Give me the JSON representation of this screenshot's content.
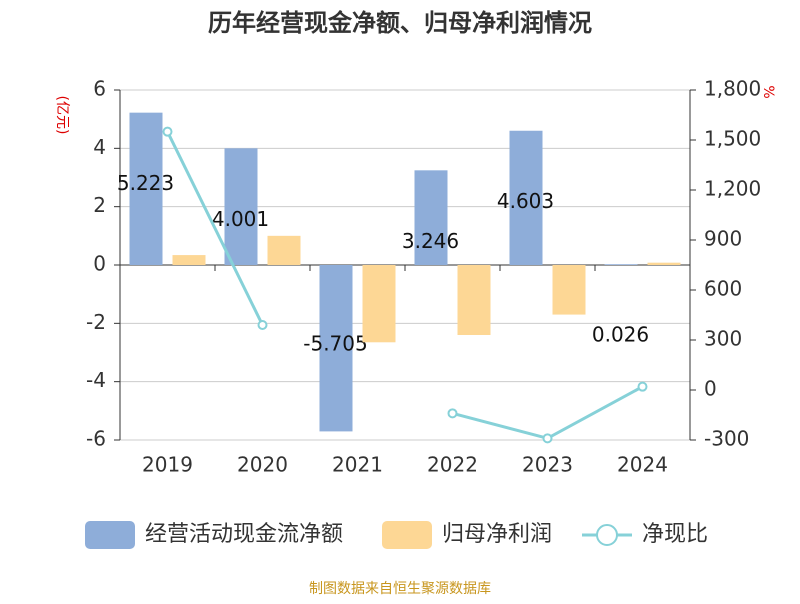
{
  "chart_data": {
    "type": "bar-line",
    "title": "历年经营现金净额、归母净利润情况",
    "y_label": "(亿元)",
    "y2_label": "%",
    "source": "制图数据来自恒生聚源数据库",
    "categories": [
      "2019",
      "2020",
      "2021",
      "2022",
      "2023",
      "2024"
    ],
    "series": [
      {
        "name": "经营活动现金流净额",
        "type": "bar",
        "color": "#8eadd9",
        "values": [
          5.223,
          4.001,
          -5.705,
          3.246,
          4.603,
          0.026
        ],
        "data_labels": true
      },
      {
        "name": "归母净利润",
        "type": "bar",
        "color": "#fdd795",
        "values": [
          0.34,
          1.0,
          -2.65,
          -2.4,
          -1.7,
          0.08
        ]
      },
      {
        "name": "净现比",
        "type": "line",
        "axis": "y2",
        "color": "#86d1d8",
        "values": [
          1550,
          390,
          null,
          -140,
          -290,
          20
        ]
      }
    ],
    "ylim": [
      -6,
      6
    ],
    "yticks": [
      -6,
      -4,
      -2,
      0,
      2,
      4,
      6
    ],
    "y2lim": [
      -300,
      1800
    ],
    "y2ticks": [
      -300,
      0,
      300,
      600,
      900,
      {
        "value": 1200,
        "label": "1,200"
      },
      {
        "value": 1500,
        "label": "1,500"
      },
      {
        "value": 1800,
        "label": "1,800"
      }
    ],
    "grid": true
  }
}
